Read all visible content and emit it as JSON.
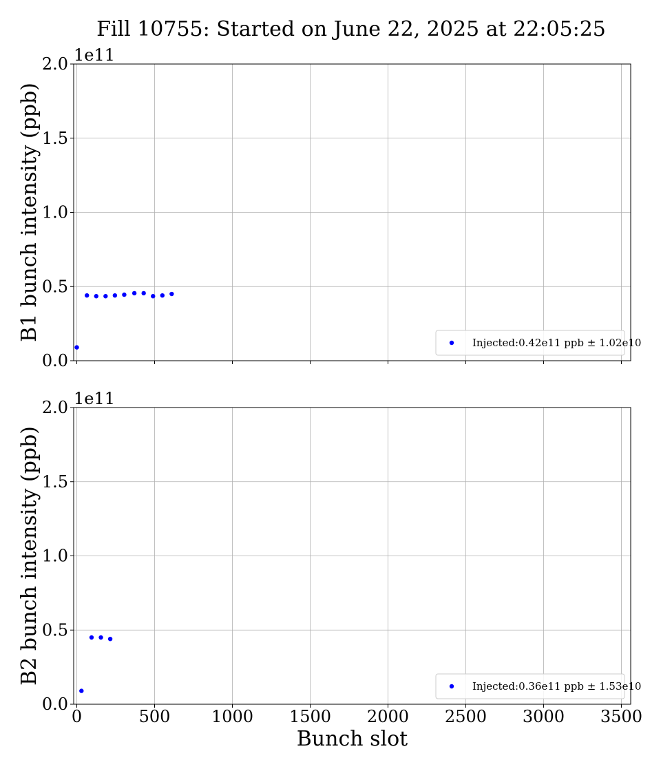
{
  "title": "Fill 10755: Started on June 22, 2025 at 22:05:25",
  "chart_data": [
    {
      "type": "scatter",
      "ylabel": "B1 bunch intensity (ppb)",
      "xlabel": "",
      "offset_label": "1e11",
      "xlim": [
        -20,
        3560
      ],
      "ylim": [
        0,
        200000000000.0
      ],
      "xticks": [
        0,
        500,
        1000,
        1500,
        2000,
        2500,
        3000,
        3500
      ],
      "xtick_labels": [],
      "yticks": [
        0,
        50000000000.0,
        100000000000.0,
        150000000000.0,
        200000000000.0
      ],
      "ytick_labels": [
        "0.0",
        "0.5",
        "1.0",
        "1.5",
        "2.0"
      ],
      "grid": true,
      "legend_position": "lower-right",
      "color": "#0000ff",
      "series": [
        {
          "name": "Injected:0.42e11 ppb ± 1.02e10",
          "x": [
            0,
            65,
            125,
            185,
            245,
            305,
            370,
            430,
            490,
            550,
            610
          ],
          "y": [
            9000000000.0,
            44000000000.0,
            43500000000.0,
            43500000000.0,
            44000000000.0,
            44500000000.0,
            45500000000.0,
            45500000000.0,
            43500000000.0,
            44000000000.0,
            45000000000.0
          ]
        }
      ]
    },
    {
      "type": "scatter",
      "ylabel": "B2 bunch intensity (ppb)",
      "xlabel": "Bunch slot",
      "offset_label": "1e11",
      "xlim": [
        -20,
        3560
      ],
      "ylim": [
        0,
        200000000000.0
      ],
      "xticks": [
        0,
        500,
        1000,
        1500,
        2000,
        2500,
        3000,
        3500
      ],
      "xtick_labels": [
        "0",
        "500",
        "1000",
        "1500",
        "2000",
        "2500",
        "3000",
        "3500"
      ],
      "yticks": [
        0,
        50000000000.0,
        100000000000.0,
        150000000000.0,
        200000000000.0
      ],
      "ytick_labels": [
        "0.0",
        "0.5",
        "1.0",
        "1.5",
        "2.0"
      ],
      "grid": true,
      "legend_position": "lower-right",
      "color": "#0000ff",
      "series": [
        {
          "name": "Injected:0.36e11 ppb ± 1.53e10",
          "x": [
            30,
            95,
            155,
            215
          ],
          "y": [
            9000000000.0,
            45000000000.0,
            45000000000.0,
            44000000000.0
          ]
        }
      ]
    }
  ]
}
